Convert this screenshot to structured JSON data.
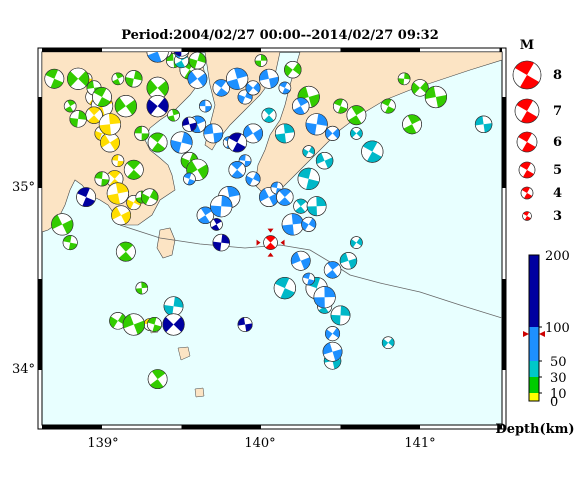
{
  "title": "Period:2004/02/27 00:00--2014/02/27 09:32",
  "map": {
    "lon_ticks": [
      "139°",
      "140°",
      "141°"
    ],
    "lat_ticks": [
      "35°",
      "34°"
    ],
    "sea_color": "#e8ffff",
    "land_color": "#fce4c4"
  },
  "magnitude_legend": {
    "title": "M",
    "values": [
      "8",
      "7",
      "6",
      "5",
      "4",
      "3"
    ],
    "color": "#ff0000"
  },
  "depth_scale": {
    "ticks": [
      "200",
      "100",
      "50",
      "30",
      "10",
      "0"
    ],
    "label": "Depth(km)",
    "colors": {
      "shallow": "#ffff00",
      "mid_shallow": "#00cc00",
      "mid": "#00c8c8",
      "mid_deep": "#1e90ff",
      "deep": "#0000a0"
    }
  },
  "chart_data": {
    "type": "scatter",
    "title": "Period:2004/02/27 00:00--2014/02/27 09:32",
    "xlabel": "",
    "ylabel": "",
    "xlim": [
      138.6,
      141.6
    ],
    "ylim": [
      33.7,
      35.8
    ],
    "highlight_event": {
      "lon": 140.06,
      "lat": 34.7,
      "magnitude": 4,
      "color": "#ff0000"
    },
    "series": [
      {
        "name": "0-10 km",
        "points": [
          [
            138.9,
            35.6
          ],
          [
            138.95,
            35.5
          ],
          [
            139.0,
            35.45
          ],
          [
            139.0,
            35.3
          ],
          [
            139.05,
            35.25
          ],
          [
            139.1,
            35.15
          ],
          [
            139.08,
            35.05
          ],
          [
            139.1,
            34.97
          ],
          [
            139.2,
            34.92
          ],
          [
            139.12,
            34.85
          ],
          [
            139.3,
            34.25
          ],
          [
            138.95,
            35.4
          ],
          [
            139.05,
            35.35
          ]
        ]
      },
      {
        "name": "10-30 km",
        "points": [
          [
            138.7,
            35.6
          ],
          [
            138.8,
            35.45
          ],
          [
            138.85,
            35.38
          ],
          [
            138.85,
            35.6
          ],
          [
            138.95,
            35.55
          ],
          [
            139.0,
            35.5
          ],
          [
            139.1,
            35.6
          ],
          [
            139.2,
            35.6
          ],
          [
            139.35,
            35.55
          ],
          [
            139.45,
            35.7
          ],
          [
            139.55,
            35.65
          ],
          [
            139.4,
            35.75
          ],
          [
            139.6,
            35.7
          ],
          [
            139.15,
            35.45
          ],
          [
            139.25,
            35.3
          ],
          [
            139.35,
            35.25
          ],
          [
            139.45,
            35.4
          ],
          [
            139.55,
            35.15
          ],
          [
            139.6,
            35.1
          ],
          [
            139.0,
            35.05
          ],
          [
            139.2,
            35.1
          ],
          [
            139.25,
            34.95
          ],
          [
            139.3,
            34.95
          ],
          [
            138.75,
            34.8
          ],
          [
            138.8,
            34.7
          ],
          [
            139.15,
            34.65
          ],
          [
            139.25,
            34.45
          ],
          [
            139.1,
            34.27
          ],
          [
            139.2,
            34.25
          ],
          [
            139.33,
            34.25
          ],
          [
            139.35,
            33.95
          ],
          [
            140.0,
            35.7
          ],
          [
            140.2,
            35.65
          ],
          [
            140.3,
            35.5
          ],
          [
            140.5,
            35.45
          ],
          [
            140.6,
            35.4
          ],
          [
            140.9,
            35.6
          ],
          [
            141.0,
            35.55
          ],
          [
            141.1,
            35.5
          ],
          [
            140.8,
            35.45
          ],
          [
            140.95,
            35.35
          ]
        ]
      },
      {
        "name": "30-50 km",
        "points": [
          [
            140.05,
            35.4
          ],
          [
            140.15,
            35.3
          ],
          [
            140.3,
            35.2
          ],
          [
            140.4,
            35.15
          ],
          [
            140.3,
            35.05
          ],
          [
            140.25,
            34.9
          ],
          [
            140.35,
            34.9
          ],
          [
            140.6,
            34.7
          ],
          [
            140.55,
            34.6
          ],
          [
            140.35,
            34.45
          ],
          [
            140.4,
            34.35
          ],
          [
            140.5,
            34.3
          ],
          [
            140.8,
            34.15
          ],
          [
            140.45,
            34.05
          ],
          [
            140.15,
            34.45
          ],
          [
            139.5,
            35.7
          ],
          [
            139.45,
            34.35
          ],
          [
            140.6,
            35.3
          ],
          [
            141.4,
            35.35
          ],
          [
            140.7,
            35.2
          ]
        ]
      },
      {
        "name": "50-100 km",
        "points": [
          [
            139.35,
            35.75
          ],
          [
            139.5,
            35.75
          ],
          [
            139.6,
            35.6
          ],
          [
            139.65,
            35.45
          ],
          [
            139.75,
            35.55
          ],
          [
            139.85,
            35.6
          ],
          [
            139.9,
            35.5
          ],
          [
            139.95,
            35.3
          ],
          [
            139.9,
            35.15
          ],
          [
            139.85,
            35.1
          ],
          [
            139.8,
            34.95
          ],
          [
            139.95,
            35.05
          ],
          [
            140.05,
            34.95
          ],
          [
            140.1,
            35.0
          ],
          [
            140.15,
            34.95
          ],
          [
            140.2,
            34.8
          ],
          [
            140.3,
            34.8
          ],
          [
            140.25,
            34.6
          ],
          [
            140.3,
            34.5
          ],
          [
            140.45,
            34.55
          ],
          [
            140.4,
            34.4
          ],
          [
            140.45,
            34.2
          ],
          [
            140.45,
            34.1
          ],
          [
            139.55,
            35.05
          ],
          [
            139.65,
            34.85
          ],
          [
            139.75,
            34.9
          ],
          [
            139.95,
            35.55
          ],
          [
            140.05,
            35.6
          ],
          [
            140.15,
            35.55
          ],
          [
            140.25,
            35.45
          ],
          [
            140.35,
            35.35
          ],
          [
            140.45,
            35.3
          ],
          [
            139.7,
            35.3
          ],
          [
            139.8,
            35.25
          ],
          [
            139.6,
            35.35
          ],
          [
            139.5,
            35.25
          ]
        ]
      },
      {
        "name": "100-200 km",
        "points": [
          [
            139.5,
            35.77
          ],
          [
            139.35,
            35.45
          ],
          [
            139.55,
            35.35
          ],
          [
            138.9,
            34.95
          ],
          [
            139.72,
            34.8
          ],
          [
            139.75,
            34.7
          ],
          [
            139.45,
            34.25
          ],
          [
            139.9,
            34.25
          ],
          [
            139.85,
            35.25
          ]
        ]
      }
    ],
    "magnitude_legend": [
      8,
      7,
      6,
      5,
      4,
      3
    ],
    "depth_scale_km": [
      0,
      10,
      30,
      50,
      100,
      200
    ]
  }
}
